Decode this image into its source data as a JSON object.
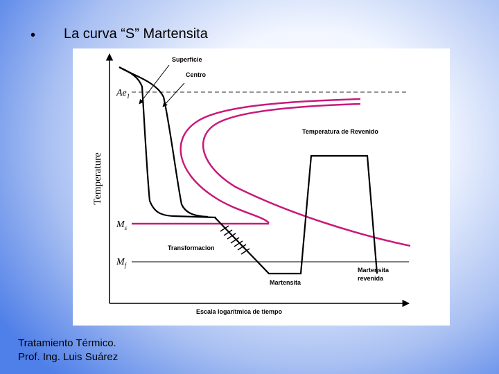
{
  "slide": {
    "bullet": "•",
    "title": "La curva “S” Martensita",
    "footer": [
      "Tratamiento Térmico.",
      "Prof. Ing. Luis Suárez"
    ]
  },
  "diagram": {
    "y_axis_label": "Temperature",
    "x_axis_label": "Escala logarítmica de tiempo",
    "ae1": {
      "main": "Ae",
      "sub": "1"
    },
    "ms": {
      "main": "M",
      "sub": "s"
    },
    "mf": {
      "main": "M",
      "sub": "f"
    },
    "labels": {
      "surface": "Superficie",
      "center": "Centro",
      "tempering": "Temperatura de Revenido",
      "transformation": "Transformacion",
      "martensite": "Martensita",
      "tempered_martensite": [
        "Martensita",
        "revenida"
      ]
    }
  }
}
